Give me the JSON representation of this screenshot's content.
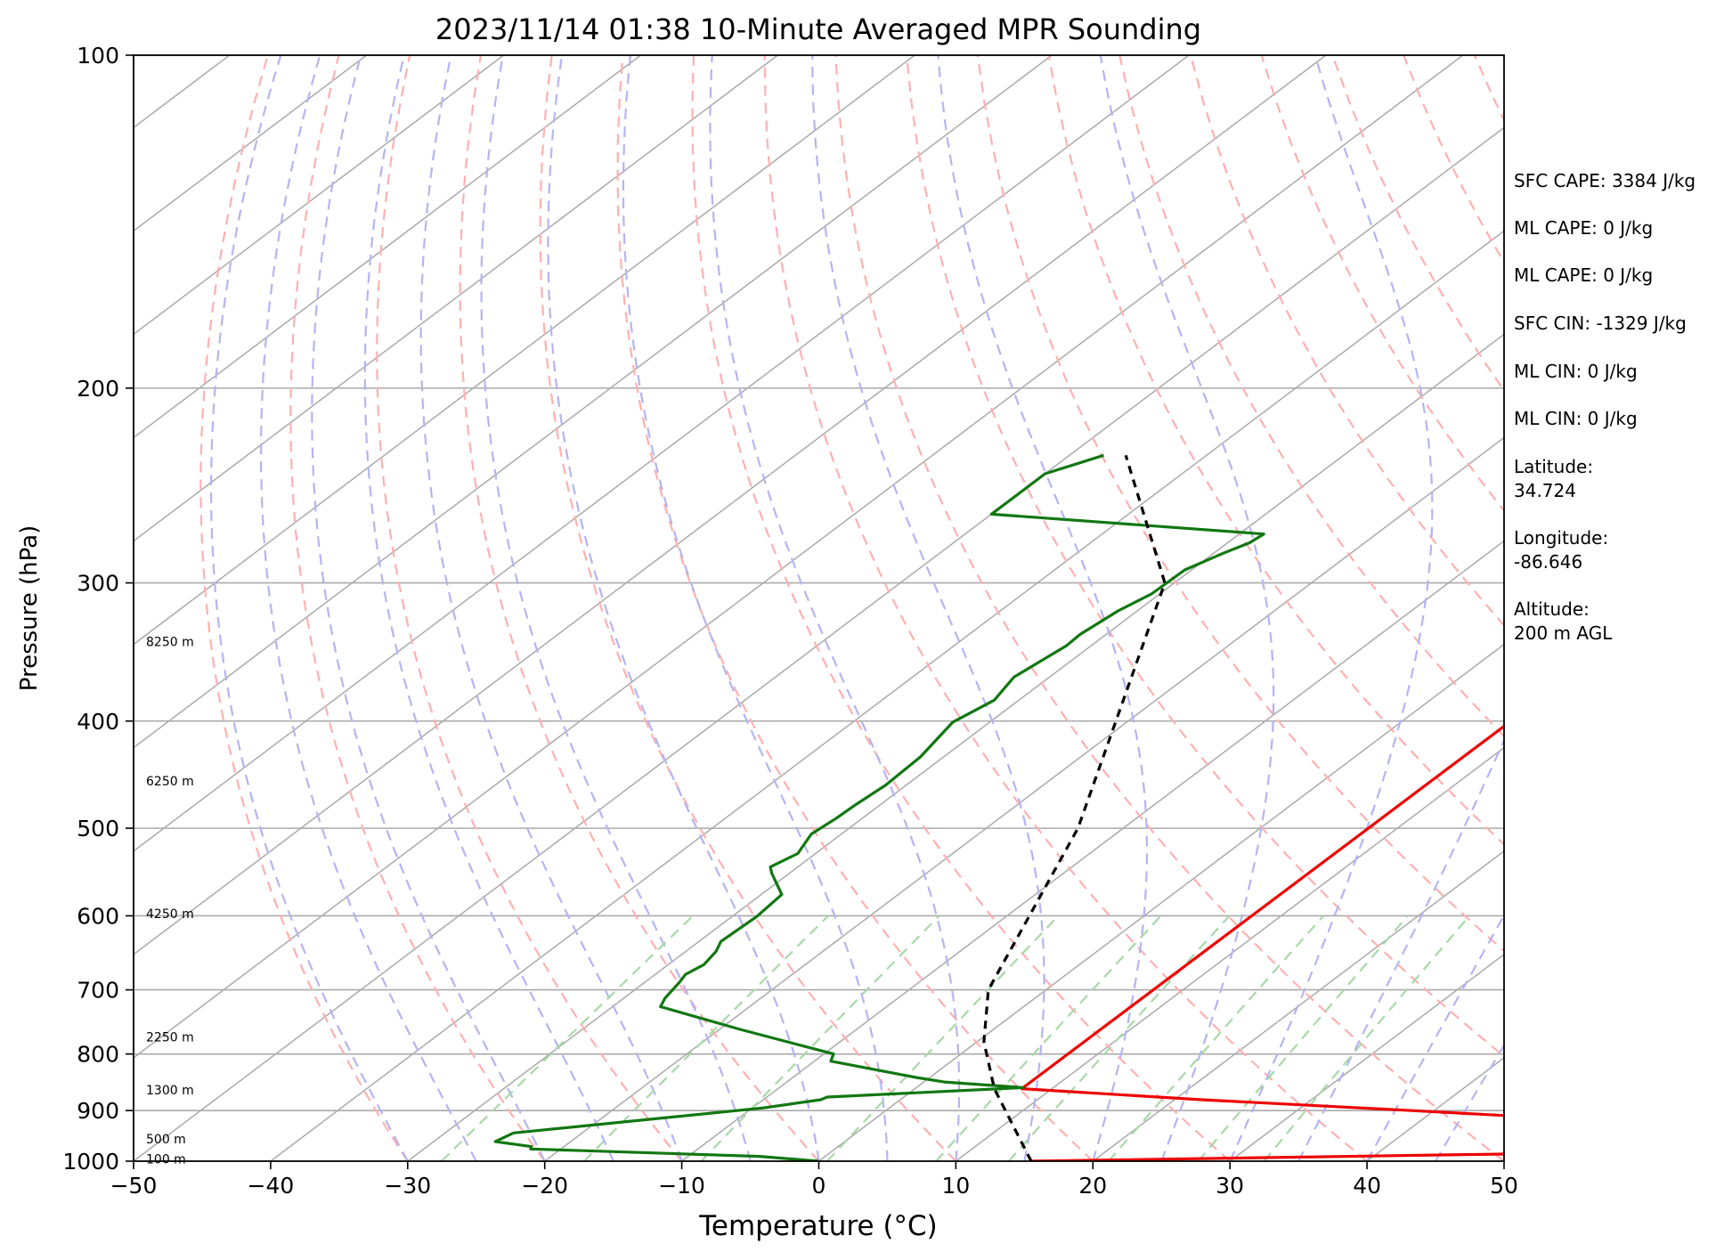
{
  "chart_data": {
    "type": "skew-t",
    "title": "2023/11/14 01:38 10-Minute Averaged MPR Sounding",
    "xlabel": "Temperature (°C)",
    "ylabel": "Pressure (hPa)",
    "xlim": [
      -50,
      50
    ],
    "ylim": [
      1000,
      100
    ],
    "y_scale": "log",
    "skew_deg_per_decade": 107,
    "grid": true,
    "x_ticks": [
      {
        "value": -50,
        "label": "−50"
      },
      {
        "value": -40,
        "label": "−40"
      },
      {
        "value": -30,
        "label": "−30"
      },
      {
        "value": -20,
        "label": "−20"
      },
      {
        "value": -10,
        "label": "−10"
      },
      {
        "value": 0,
        "label": "0"
      },
      {
        "value": 10,
        "label": "10"
      },
      {
        "value": 20,
        "label": "20"
      },
      {
        "value": 30,
        "label": "30"
      },
      {
        "value": 40,
        "label": "40"
      },
      {
        "value": 50,
        "label": "50"
      }
    ],
    "y_ticks": [
      {
        "value": 100,
        "label": "100"
      },
      {
        "value": 200,
        "label": "200"
      },
      {
        "value": 300,
        "label": "300"
      },
      {
        "value": 400,
        "label": "400"
      },
      {
        "value": 500,
        "label": "500"
      },
      {
        "value": 600,
        "label": "600"
      },
      {
        "value": 700,
        "label": "700"
      },
      {
        "value": 800,
        "label": "800"
      },
      {
        "value": 900,
        "label": "900"
      },
      {
        "value": 1000,
        "label": "1000"
      }
    ],
    "height_labels": [
      {
        "p": 995,
        "label": "100 m"
      },
      {
        "p": 955,
        "label": "500 m"
      },
      {
        "p": 862,
        "label": "1300 m"
      },
      {
        "p": 772,
        "label": "2250 m"
      },
      {
        "p": 597,
        "label": "4250 m"
      },
      {
        "p": 453,
        "label": "6250 m"
      },
      {
        "p": 339,
        "label": "8250 m"
      }
    ],
    "series": [
      {
        "color": "#ee0000",
        "points": [
          [
            1000,
            15.5
          ],
          [
            985,
            50
          ],
          [
            915,
            50
          ],
          [
            900,
            38.4
          ],
          [
            880,
            22
          ],
          [
            860,
            7.8
          ],
          [
            254,
            8
          ],
          [
            246,
            8.2
          ],
          [
            236,
            9.2
          ],
          [
            231,
            9.5
          ]
        ]
      },
      {
        "color": "#117711",
        "points": [
          [
            1000,
            0
          ],
          [
            990,
            -4.8
          ],
          [
            975,
            -22.2
          ],
          [
            970,
            -22.4
          ],
          [
            960,
            -25.5
          ],
          [
            943,
            -25
          ],
          [
            895,
            -9.2
          ],
          [
            880,
            -5.8
          ],
          [
            875,
            -5.6
          ],
          [
            858,
            7.8
          ],
          [
            848,
            1.5
          ],
          [
            840,
            -1
          ],
          [
            812,
            -8.8
          ],
          [
            800,
            -9.3
          ],
          [
            760,
            -18.5
          ],
          [
            725,
            -26.5
          ],
          [
            712,
            -27
          ],
          [
            688,
            -27.5
          ],
          [
            678,
            -27.8
          ],
          [
            664,
            -27.4
          ],
          [
            646,
            -27.8
          ],
          [
            633,
            -28.4
          ],
          [
            601,
            -28.2
          ],
          [
            574,
            -28.5
          ],
          [
            549,
            -31.3
          ],
          [
            542,
            -32
          ],
          [
            527,
            -31.3
          ],
          [
            506,
            -32.2
          ],
          [
            490,
            -31.9
          ],
          [
            476,
            -31.8
          ],
          [
            457,
            -31.5
          ],
          [
            431,
            -31.7
          ],
          [
            401,
            -32.7
          ],
          [
            383,
            -31.8
          ],
          [
            365,
            -32.6
          ],
          [
            342,
            -31.8
          ],
          [
            334,
            -31.9
          ],
          [
            318,
            -31.4
          ],
          [
            307,
            -30.6
          ],
          [
            292,
            -30.5
          ],
          [
            282,
            -29.3
          ],
          [
            276,
            -28.4
          ],
          [
            271,
            -28.2
          ],
          [
            260,
            -50
          ],
          [
            239,
            -50
          ],
          [
            230,
            -47.5
          ]
        ]
      },
      {
        "color": "#000000",
        "dashed": true,
        "points": [
          [
            1000,
            15.5
          ],
          [
            860,
            5.8
          ],
          [
            780,
            0.5
          ],
          [
            700,
            -4.2
          ],
          [
            500,
            -13.3
          ],
          [
            300,
            -30.7
          ],
          [
            230,
            -45.9
          ]
        ]
      }
    ],
    "background_lines": {
      "isotherm_color": "#aaaaaa",
      "dry_adiabat_color": "#ffb0b0",
      "moist_adiabat_color": "#b4b4f4",
      "mixing_ratio_color": "#a8d8a8"
    }
  },
  "annotations": [
    {
      "text": "SFC CAPE: 3384 J/kg"
    },
    {
      "text": "ML CAPE: 0 J/kg"
    },
    {
      "text": "ML CAPE: 0 J/kg"
    },
    {
      "text": "SFC CIN: -1329 J/kg"
    },
    {
      "text": "ML CIN: 0 J/kg"
    },
    {
      "text": "ML CIN: 0 J/kg"
    },
    {
      "text": "Latitude:\n34.724"
    },
    {
      "text": "Longitude:\n-86.646"
    },
    {
      "text": "Altitude:\n200 m AGL"
    }
  ]
}
